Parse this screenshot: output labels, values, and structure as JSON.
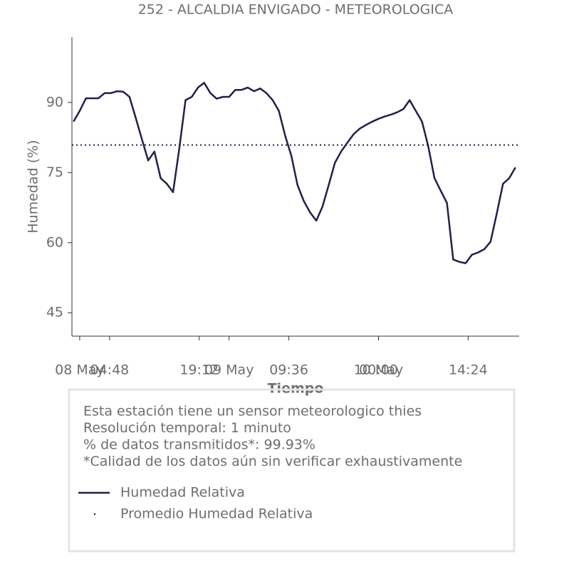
{
  "chart_data": {
    "type": "line",
    "title": "252 - ALCALDIA ENVIGADO - METEOROLOGICA",
    "x_label": "Tiempo",
    "y_label": "Humedad (%)",
    "x": [
      "07 May 23:00",
      "08 May 00:00",
      "08 May 01:00",
      "08 May 02:00",
      "08 May 03:00",
      "08 May 04:00",
      "08 May 05:00",
      "08 May 06:00",
      "08 May 07:00",
      "08 May 08:00",
      "08 May 09:00",
      "08 May 10:00",
      "08 May 11:00",
      "08 May 12:00",
      "08 May 13:00",
      "08 May 14:00",
      "08 May 15:00",
      "08 May 16:00",
      "08 May 17:00",
      "08 May 18:00",
      "08 May 19:00",
      "08 May 20:00",
      "08 May 21:00",
      "08 May 22:00",
      "08 May 23:00",
      "09 May 00:00",
      "09 May 01:00",
      "09 May 02:00",
      "09 May 03:00",
      "09 May 04:00",
      "09 May 05:00",
      "09 May 06:00",
      "09 May 07:00",
      "09 May 08:00",
      "09 May 09:00",
      "09 May 10:00",
      "09 May 11:00",
      "09 May 12:00",
      "09 May 13:00",
      "09 May 14:00",
      "09 May 15:00",
      "09 May 16:00",
      "09 May 17:00",
      "09 May 18:00",
      "09 May 19:00",
      "09 May 20:00",
      "09 May 21:00",
      "09 May 22:00",
      "09 May 23:00",
      "10 May 00:00",
      "10 May 01:00",
      "10 May 02:00",
      "10 May 03:00",
      "10 May 04:00",
      "10 May 05:00",
      "10 May 06:00",
      "10 May 07:00",
      "10 May 08:00",
      "10 May 09:00",
      "10 May 10:00",
      "10 May 11:00",
      "10 May 12:00",
      "10 May 13:00",
      "10 May 14:00",
      "10 May 15:00",
      "10 May 16:00",
      "10 May 17:00",
      "10 May 18:00",
      "10 May 19:00",
      "10 May 20:00",
      "10 May 21:00",
      "10 May 22:00"
    ],
    "series": [
      {
        "name": "Humedad Relativa",
        "color": "#20204a",
        "values": [
          85.9,
          88.2,
          90.9,
          90.9,
          90.9,
          92.0,
          92.0,
          92.4,
          92.3,
          91.2,
          86.7,
          82.1,
          77.6,
          79.5,
          73.8,
          72.6,
          70.8,
          80.2,
          90.5,
          91.2,
          93.2,
          94.2,
          92.0,
          90.8,
          91.2,
          91.2,
          92.7,
          92.7,
          93.2,
          92.4,
          93.0,
          92.0,
          90.5,
          88.2,
          82.9,
          78.6,
          72.3,
          68.9,
          66.5,
          64.7,
          67.7,
          72.3,
          77.1,
          79.5,
          81.4,
          83.2,
          84.4,
          85.2,
          85.9,
          86.5,
          87.0,
          87.4,
          87.9,
          88.6,
          90.5,
          88.2,
          85.9,
          80.6,
          73.8,
          71.1,
          68.5,
          56.4,
          55.9,
          55.6,
          57.4,
          57.9,
          58.6,
          60.2,
          66.2,
          72.6,
          73.8,
          76.1
        ]
      }
    ],
    "mean_line": {
      "name": "Promedio Humedad Relativa",
      "value": 80.9,
      "color": "#20204a"
    },
    "xlim": [
      "07 May 22:45",
      "10 May 22:36"
    ],
    "xticks": [
      {
        "value": "08 May 00:00",
        "label": "08 May"
      },
      {
        "value": "08 May 04:48",
        "label": "04:48"
      },
      {
        "value": "08 May 19:12",
        "label": "19:12"
      },
      {
        "value": "09 May 00:00",
        "label": "09 May"
      },
      {
        "value": "09 May 09:36",
        "label": "09:36"
      },
      {
        "value": "10 May 00:00",
        "label": "00:00"
      },
      {
        "value": "10 May 00:00",
        "label": "10 May"
      },
      {
        "value": "10 May 14:24",
        "label": "14:24"
      }
    ],
    "ylim": [
      40,
      104
    ],
    "yticks": [
      45,
      60,
      75,
      90
    ],
    "notes": [
      "Esta estación tiene un sensor meteorologico thies",
      "Resolución temporal: 1 minuto",
      "% de datos transmitidos*: 99.93%",
      "*Calidad de los datos aún sin verificar exhaustivamente"
    ]
  }
}
